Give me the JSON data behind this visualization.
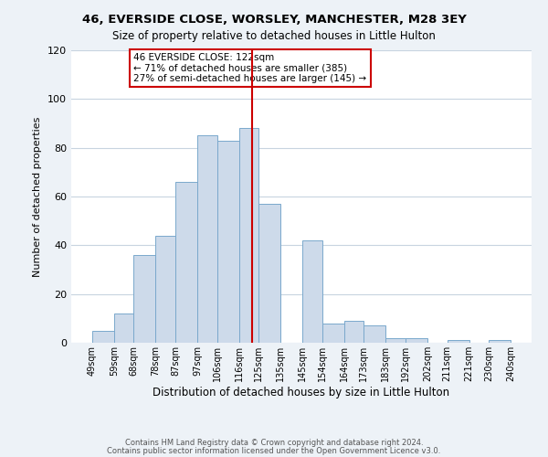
{
  "title_line1": "46, EVERSIDE CLOSE, WORSLEY, MANCHESTER, M28 3EY",
  "title_line2": "Size of property relative to detached houses in Little Hulton",
  "xlabel": "Distribution of detached houses by size in Little Hulton",
  "ylabel": "Number of detached properties",
  "bar_edges": [
    49,
    59,
    68,
    78,
    87,
    97,
    106,
    116,
    125,
    135,
    145,
    154,
    164,
    173,
    183,
    192,
    202,
    211,
    221,
    230,
    240
  ],
  "bar_heights": [
    5,
    12,
    36,
    44,
    66,
    85,
    83,
    88,
    57,
    0,
    42,
    8,
    9,
    7,
    2,
    2,
    0,
    1,
    0,
    1
  ],
  "bar_color": "#cddaea",
  "bar_edge_color": "#7aa8cc",
  "tick_labels": [
    "49sqm",
    "59sqm",
    "68sqm",
    "78sqm",
    "87sqm",
    "97sqm",
    "106sqm",
    "116sqm",
    "125sqm",
    "135sqm",
    "145sqm",
    "154sqm",
    "164sqm",
    "173sqm",
    "183sqm",
    "192sqm",
    "202sqm",
    "211sqm",
    "221sqm",
    "230sqm",
    "240sqm"
  ],
  "vline_x": 122,
  "vline_color": "#cc0000",
  "ylim": [
    0,
    120
  ],
  "yticks": [
    0,
    20,
    40,
    60,
    80,
    100,
    120
  ],
  "annotation_title": "46 EVERSIDE CLOSE: 122sqm",
  "annotation_line1": "← 71% of detached houses are smaller (385)",
  "annotation_line2": "27% of semi-detached houses are larger (145) →",
  "annotation_box_color": "#ffffff",
  "annotation_box_edge": "#cc0000",
  "footer_line1": "Contains HM Land Registry data © Crown copyright and database right 2024.",
  "footer_line2": "Contains public sector information licensed under the Open Government Licence v3.0.",
  "background_color": "#edf2f7",
  "plot_bg_color": "#ffffff",
  "grid_color": "#c8d4e0"
}
